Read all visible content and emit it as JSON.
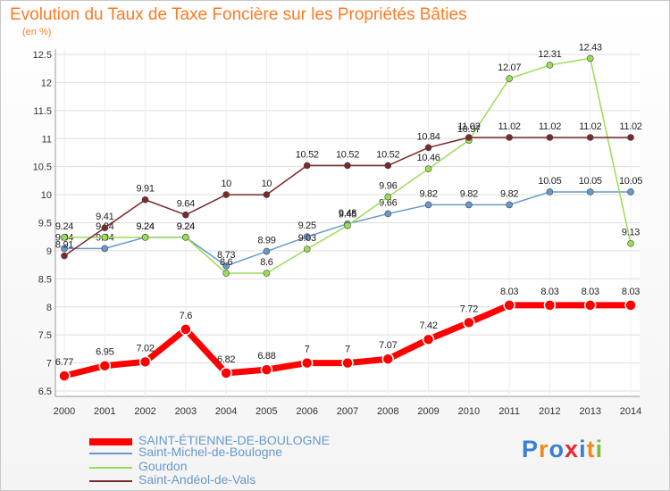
{
  "chart_data": {
    "type": "line",
    "title": "Evolution du Taux de Taxe Foncière sur les Propriétés Bâties",
    "unit_label": "(en %)",
    "categories": [
      "2000",
      "2001",
      "2002",
      "2003",
      "2004",
      "2005",
      "2006",
      "2007",
      "2008",
      "2009",
      "2010",
      "2011",
      "2012",
      "2013",
      "2014"
    ],
    "ylim": [
      6.5,
      12.5
    ],
    "yticks": [
      "6.5",
      "7",
      "7.5",
      "8",
      "8.5",
      "9",
      "9.5",
      "10",
      "10.5",
      "11",
      "11.5",
      "12",
      "12.5"
    ],
    "series": [
      {
        "name": "SAINT-ÉTIENNE-DE-BOULOGNE",
        "color": "#ff0000",
        "values": [
          6.77,
          6.95,
          7.02,
          7.6,
          6.82,
          6.88,
          7,
          7,
          7.07,
          7.42,
          7.72,
          8.03,
          8.03,
          8.03,
          8.03
        ],
        "labels": [
          "6.77",
          "6.95",
          "7.02",
          "7.6",
          "6.82",
          "6.88",
          "7",
          "7",
          "7.07",
          "7.42",
          "7.72",
          "8.03",
          "8.03",
          "8.03",
          "8.03"
        ]
      },
      {
        "name": "Saint-Michel-de-Boulogne",
        "color": "#6699cc",
        "values": [
          9.04,
          9.04,
          9.24,
          9.24,
          8.73,
          8.99,
          9.25,
          9.48,
          9.66,
          9.82,
          9.82,
          9.82,
          10.05,
          10.05,
          10.05
        ],
        "labels": [
          "9.04",
          "9.04",
          "9.24",
          "9.24",
          "8.73",
          "8.99",
          "9.25",
          "9.48",
          "9.66",
          "9.82",
          "9.82",
          "9.82",
          "10.05",
          "10.05",
          "10.05"
        ]
      },
      {
        "name": "Gourdon",
        "color": "#99dd55",
        "values": [
          9.24,
          9.24,
          9.24,
          9.24,
          8.6,
          8.6,
          9.03,
          9.45,
          9.96,
          10.46,
          10.97,
          12.07,
          12.31,
          12.43,
          9.13
        ],
        "labels": [
          "9.24",
          "9.24",
          "9.24",
          "9.24",
          "8.6",
          "8.6",
          "9.03",
          "9.45",
          "9.96",
          "10.46",
          "10.97",
          "12.07",
          "12.31",
          "12.43",
          "9.13"
        ]
      },
      {
        "name": "Saint-Andéol-de-Vals",
        "color": "#7a2a2a",
        "values": [
          8.91,
          9.41,
          9.91,
          9.64,
          10,
          10,
          10.52,
          10.52,
          10.52,
          10.84,
          11.02,
          11.02,
          11.02,
          11.02,
          11.02
        ],
        "labels": [
          "8.91",
          "9.41",
          "9.91",
          "9.64",
          "10",
          "10",
          "10.52",
          "10.52",
          "10.52",
          "10.84",
          "11.02",
          "11.02",
          "11.02",
          "11.02",
          "11.02"
        ]
      }
    ]
  },
  "legend": {
    "items": [
      {
        "label": "SAINT-ÉTIENNE-DE-BOULOGNE",
        "color": "#ff0000"
      },
      {
        "label": "Saint-Michel-de-Boulogne",
        "color": "#6699cc"
      },
      {
        "label": "Gourdon",
        "color": "#99dd55"
      },
      {
        "label": "Saint-Andéol-de-Vals",
        "color": "#7a2a2a"
      }
    ]
  },
  "logo": {
    "letters": [
      "P",
      "r",
      "o",
      "x",
      "i",
      "t",
      "i"
    ],
    "colors": [
      "#3a7fd5",
      "#f08a1c",
      "#3a7fd5",
      "#e8262f",
      "#3a7fd5",
      "#f08a1c",
      "#7bbf3a"
    ]
  }
}
